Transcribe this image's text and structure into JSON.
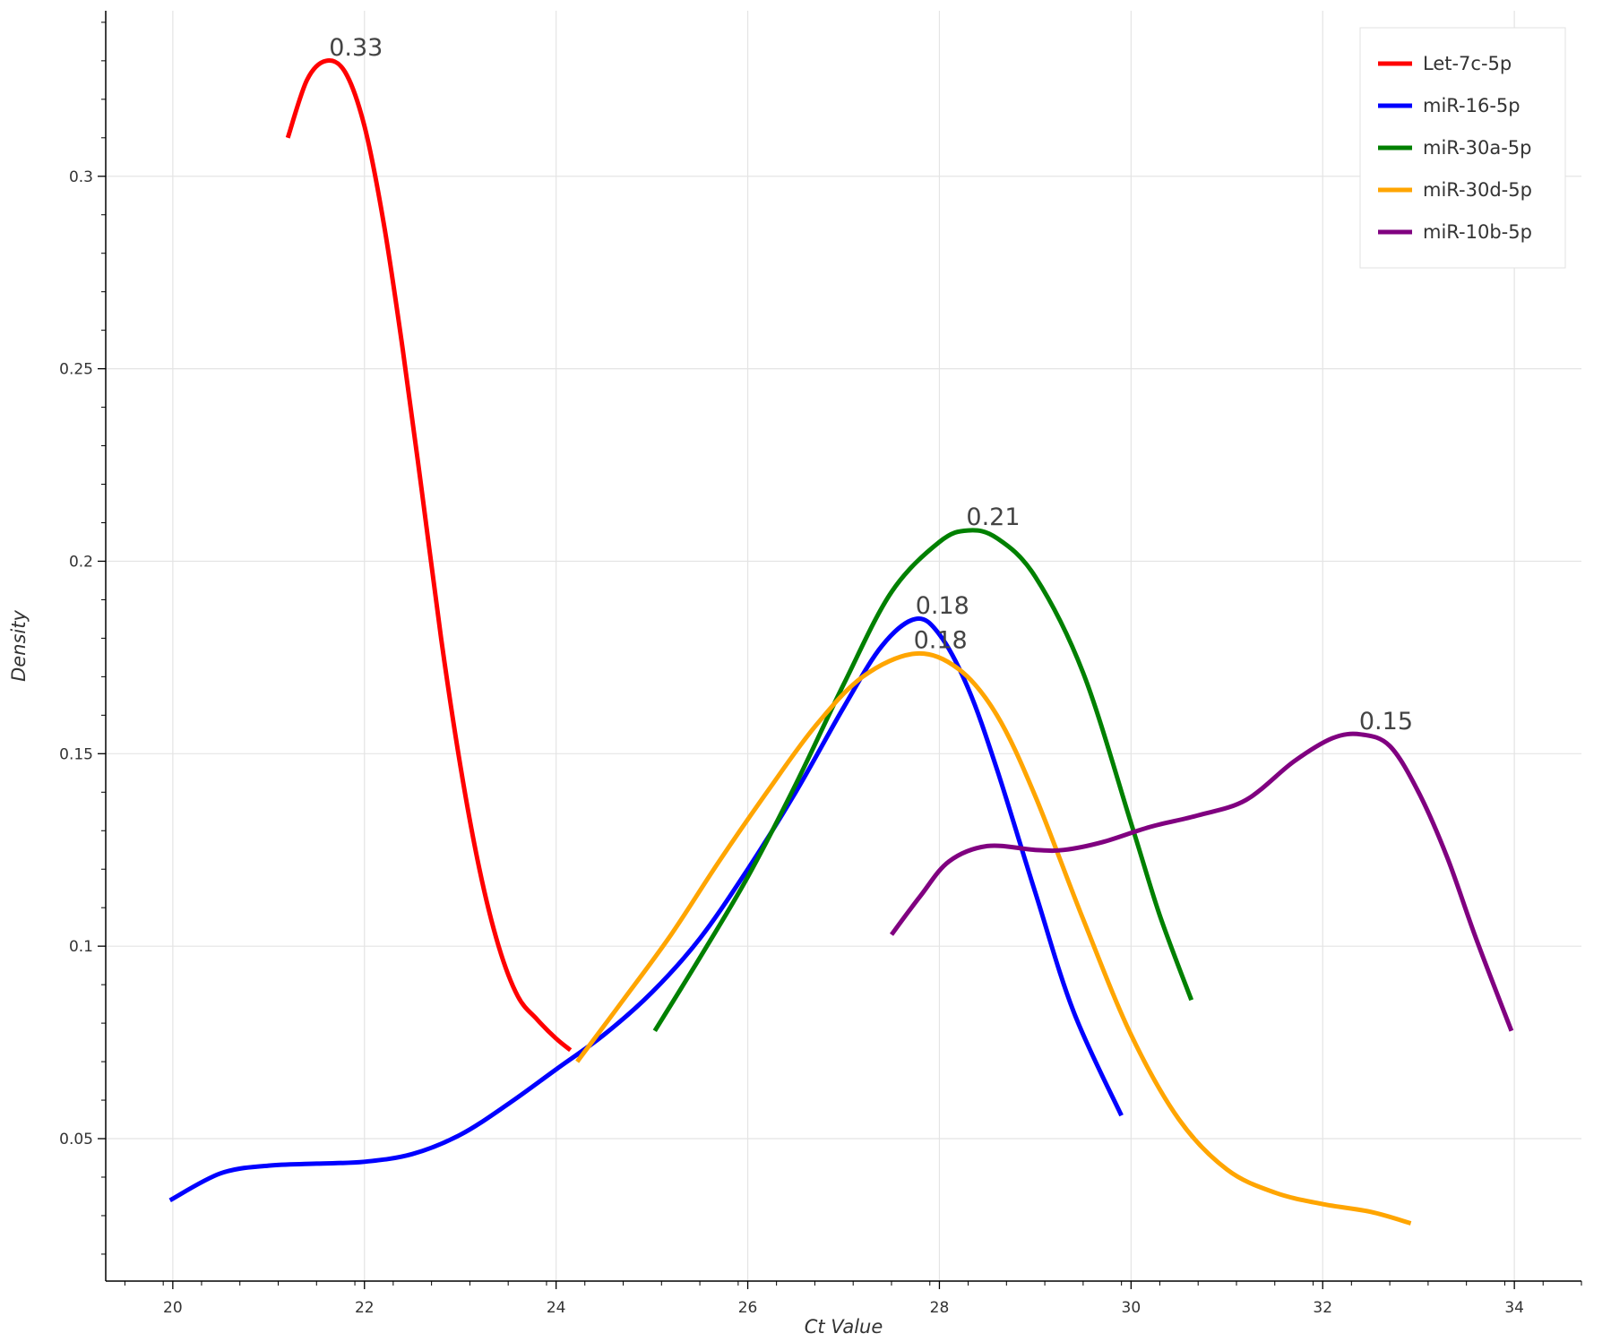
{
  "chart_data": {
    "type": "line",
    "xlabel": "Ct Value",
    "ylabel": "Density",
    "xlim": [
      19.3,
      34.7
    ],
    "ylim": [
      0.013,
      0.343
    ],
    "xticks": [
      20,
      22,
      24,
      26,
      28,
      30,
      32,
      34
    ],
    "xtick_labels": [
      "20",
      "22",
      "24",
      "26",
      "28",
      "30",
      "32",
      "34"
    ],
    "yticks": [
      0.05,
      0.1,
      0.15,
      0.2,
      0.25,
      0.3
    ],
    "ytick_labels": [
      "0.05",
      "0.1",
      "0.15",
      "0.2",
      "0.25",
      "0.3"
    ],
    "grid": true,
    "legend_position": "top-right",
    "series": [
      {
        "name": "Let-7c-5p",
        "color": "#ff0000",
        "x": [
          21.2,
          21.4,
          21.6,
          21.8,
          22.0,
          22.2,
          22.4,
          22.6,
          22.8,
          23.0,
          23.2,
          23.4,
          23.6,
          23.8,
          24.0,
          24.15
        ],
        "y": [
          0.31,
          0.325,
          0.33,
          0.327,
          0.313,
          0.288,
          0.255,
          0.218,
          0.18,
          0.147,
          0.12,
          0.1,
          0.087,
          0.081,
          0.076,
          0.073
        ],
        "peak": {
          "x": 21.63,
          "y": 0.33,
          "label": "0.33"
        }
      },
      {
        "name": "miR-16-5p",
        "color": "#0000ff",
        "x": [
          19.97,
          20.5,
          21.0,
          21.5,
          22.0,
          22.5,
          23.0,
          23.5,
          24.0,
          24.5,
          25.0,
          25.5,
          26.0,
          26.5,
          27.0,
          27.4,
          27.75,
          28.0,
          28.3,
          28.6,
          29.0,
          29.4,
          29.9
        ],
        "y": [
          0.034,
          0.041,
          0.043,
          0.0435,
          0.044,
          0.046,
          0.051,
          0.059,
          0.068,
          0.077,
          0.088,
          0.102,
          0.12,
          0.14,
          0.162,
          0.178,
          0.185,
          0.181,
          0.167,
          0.146,
          0.114,
          0.083,
          0.056
        ],
        "peak": {
          "x": 27.75,
          "y": 0.185,
          "label": "0.18"
        }
      },
      {
        "name": "miR-30a-5p",
        "color": "#008000",
        "x": [
          25.03,
          25.5,
          26.0,
          26.5,
          27.0,
          27.5,
          28.0,
          28.3,
          28.6,
          29.0,
          29.5,
          30.0,
          30.3,
          30.63
        ],
        "y": [
          0.078,
          0.097,
          0.118,
          0.142,
          0.168,
          0.192,
          0.205,
          0.208,
          0.206,
          0.196,
          0.171,
          0.132,
          0.108,
          0.086
        ],
        "peak": {
          "x": 28.28,
          "y": 0.208,
          "label": "0.21"
        }
      },
      {
        "name": "miR-30d-5p",
        "color": "#ffa500",
        "x": [
          24.22,
          24.7,
          25.2,
          25.7,
          26.2,
          26.7,
          27.2,
          27.75,
          28.2,
          28.6,
          29.0,
          29.5,
          30.0,
          30.5,
          31.0,
          31.5,
          32.0,
          32.5,
          32.92
        ],
        "y": [
          0.07,
          0.086,
          0.103,
          0.122,
          0.14,
          0.157,
          0.17,
          0.176,
          0.172,
          0.16,
          0.139,
          0.107,
          0.077,
          0.055,
          0.042,
          0.036,
          0.033,
          0.031,
          0.028
        ],
        "peak": {
          "x": 27.73,
          "y": 0.176,
          "label": "0.18"
        }
      },
      {
        "name": "miR-10b-5p",
        "color": "#800080",
        "x": [
          27.5,
          27.8,
          28.1,
          28.5,
          29.0,
          29.3,
          29.7,
          30.2,
          30.7,
          31.2,
          31.7,
          32.1,
          32.4,
          32.7,
          33.0,
          33.3,
          33.6,
          33.97
        ],
        "y": [
          0.103,
          0.113,
          0.122,
          0.126,
          0.125,
          0.125,
          0.127,
          0.131,
          0.134,
          0.138,
          0.148,
          0.154,
          0.155,
          0.152,
          0.14,
          0.123,
          0.102,
          0.078
        ],
        "peak": {
          "x": 32.38,
          "y": 0.155,
          "label": "0.15"
        }
      }
    ]
  }
}
